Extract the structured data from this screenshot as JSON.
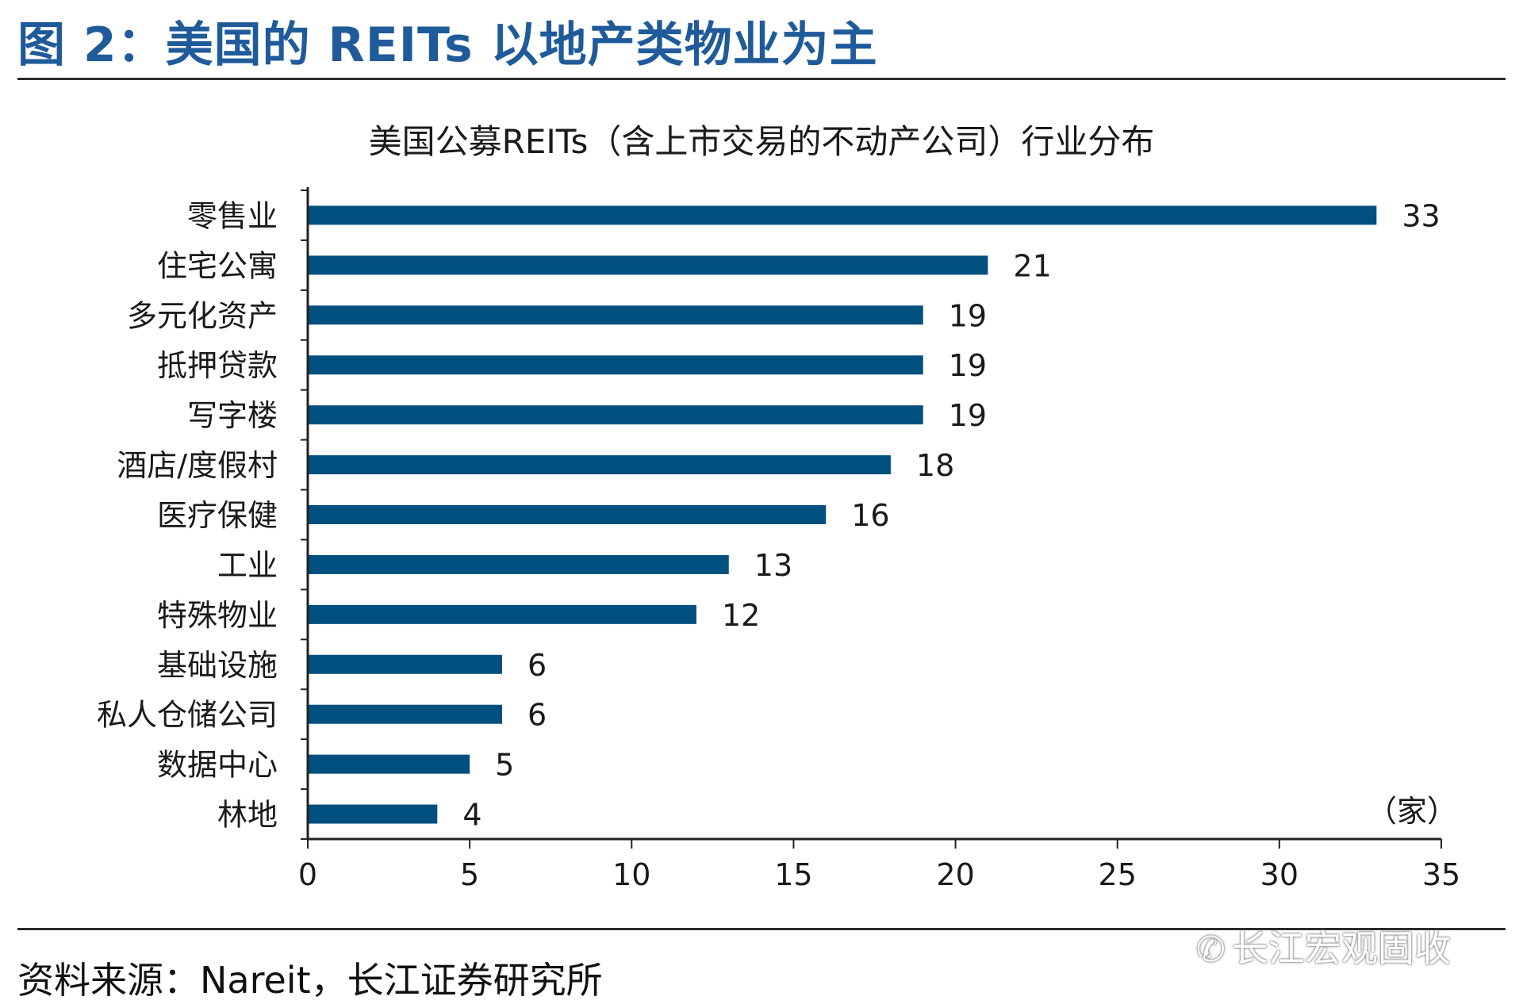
{
  "figure": {
    "title": "图 2：美国的 REITs 以地产类物业为主",
    "source": "资料来源：Nareit，长江证券研究所",
    "watermark_icon": "wechat-icon",
    "watermark_text": "长江宏观固收"
  },
  "colors": {
    "bar": "#00507f",
    "title": "#1f5b9a",
    "axis": "#222222"
  },
  "chart_data": {
    "type": "bar",
    "orientation": "horizontal",
    "title": "美国公募REITs（含上市交易的不动产公司）行业分布",
    "categories": [
      "零售业",
      "住宅公寓",
      "多元化资产",
      "抵押贷款",
      "写字楼",
      "酒店/度假村",
      "医疗保健",
      "工业",
      "特殊物业",
      "基础设施",
      "私人仓储公司",
      "数据中心",
      "林地"
    ],
    "values": [
      33,
      21,
      19,
      19,
      19,
      18,
      16,
      13,
      12,
      6,
      6,
      5,
      4
    ],
    "unit_label": "（家）",
    "xlim": [
      0,
      35
    ],
    "xticks": [
      0,
      5,
      10,
      15,
      20,
      25,
      30,
      35
    ],
    "grid": false,
    "legend": "none",
    "data_labels": true
  }
}
